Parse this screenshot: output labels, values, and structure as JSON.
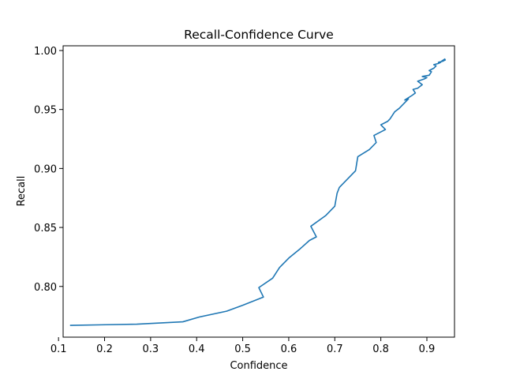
{
  "chart_data": {
    "type": "line",
    "title": "Recall-Confidence Curve",
    "xlabel": "Confidence",
    "ylabel": "Recall",
    "xlim": [
      0.11,
      0.96
    ],
    "ylim": [
      0.757,
      1.004
    ],
    "xticks": [
      0.1,
      0.2,
      0.3,
      0.4,
      0.5,
      0.6,
      0.7,
      0.8,
      0.9
    ],
    "xtick_labels": [
      "0.1",
      "0.2",
      "0.3",
      "0.4",
      "0.5",
      "0.6",
      "0.7",
      "0.8",
      "0.9"
    ],
    "yticks": [
      0.8,
      0.85,
      0.9,
      0.95,
      1.0
    ],
    "ytick_labels": [
      "0.80",
      "0.85",
      "0.90",
      "0.95",
      "1.00"
    ],
    "grid": false,
    "series": [
      {
        "color": "#1f77b4",
        "x": [
          0.125,
          0.27,
          0.37,
          0.405,
          0.465,
          0.5,
          0.545,
          0.535,
          0.565,
          0.58,
          0.6,
          0.625,
          0.645,
          0.66,
          0.648,
          0.68,
          0.7,
          0.705,
          0.71,
          0.745,
          0.75,
          0.775,
          0.79,
          0.785,
          0.8,
          0.81,
          0.8,
          0.815,
          0.82,
          0.83,
          0.84,
          0.845,
          0.855,
          0.86,
          0.852,
          0.868,
          0.875,
          0.87,
          0.88,
          0.89,
          0.88,
          0.895,
          0.9,
          0.89,
          0.905,
          0.91,
          0.905,
          0.915,
          0.92,
          0.915,
          0.925,
          0.93,
          0.925,
          0.935,
          0.94,
          0.932,
          0.94
        ],
        "y": [
          0.767,
          0.768,
          0.77,
          0.774,
          0.779,
          0.784,
          0.791,
          0.799,
          0.807,
          0.816,
          0.824,
          0.832,
          0.839,
          0.842,
          0.851,
          0.86,
          0.868,
          0.879,
          0.884,
          0.898,
          0.91,
          0.916,
          0.922,
          0.928,
          0.931,
          0.933,
          0.937,
          0.94,
          0.942,
          0.948,
          0.951,
          0.953,
          0.957,
          0.959,
          0.958,
          0.962,
          0.964,
          0.967,
          0.968,
          0.971,
          0.974,
          0.976,
          0.977,
          0.978,
          0.979,
          0.982,
          0.983,
          0.985,
          0.987,
          0.988,
          0.989,
          0.99,
          0.99,
          0.991,
          0.992,
          0.991,
          0.993
        ]
      }
    ]
  }
}
